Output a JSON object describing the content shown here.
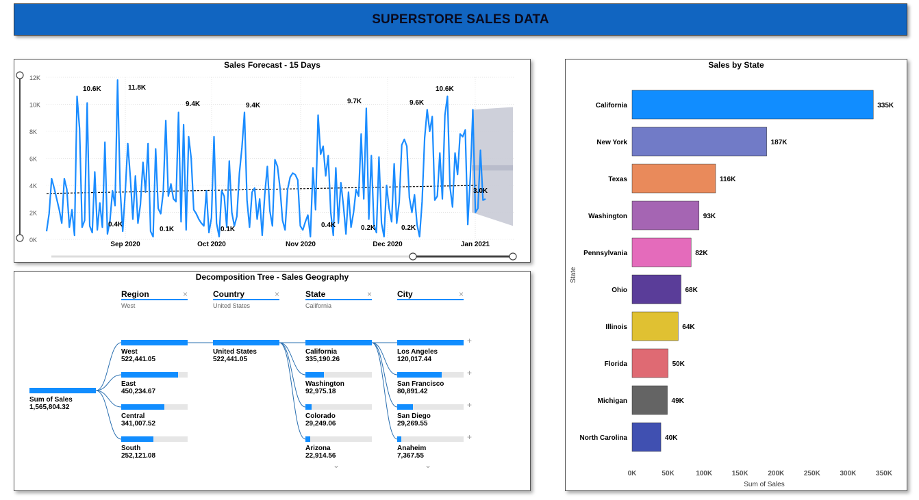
{
  "header": {
    "title": "SUPERSTORE SALES DATA"
  },
  "forecast": {
    "title": "Sales Forecast - 15 Days",
    "chart_data": {
      "type": "line",
      "title": "Sales Forecast - 15 Days",
      "ylim": [
        0,
        12000
      ],
      "y_ticks": [
        "0K",
        "2K",
        "4K",
        "6K",
        "8K",
        "10K",
        "12K"
      ],
      "x_ticks": [
        "Sep 2020",
        "Oct 2020",
        "Nov 2020",
        "Dec 2020",
        "Jan 2021"
      ],
      "x_range": [
        "2020-08-13",
        "2021-01-15"
      ],
      "series": [
        {
          "values": [
            600,
            1900,
            4500,
            3800,
            3000,
            2200,
            1200,
            4500,
            3700,
            900,
            2200,
            300,
            10600,
            8200,
            900,
            1400,
            10100,
            1000,
            500,
            5000,
            700,
            2700,
            900,
            7200,
            400,
            1400,
            3600,
            2500,
            11800,
            3700,
            600,
            3500,
            7100,
            4600,
            1500,
            4700,
            1200,
            2600,
            5700,
            3500,
            7100,
            600,
            200,
            6700,
            2300,
            1900,
            3500,
            8800,
            3200,
            4100,
            3000,
            2800,
            9400,
            1300,
            8500,
            700,
            7600,
            6000,
            2200,
            1900,
            1500,
            1200,
            1000,
            3600,
            500,
            1600,
            7600,
            1200,
            200,
            3600,
            3200,
            900,
            5800,
            2000,
            1000,
            1700,
            4900,
            6800,
            9400,
            2900,
            900,
            3500,
            3800,
            1500,
            3000,
            300,
            3300,
            5400,
            2100,
            1000,
            5900,
            5400,
            3800,
            1400,
            700,
            3700,
            4600,
            4900,
            4800,
            4400,
            1000,
            700,
            1300,
            1800,
            200,
            5300,
            2200,
            9200,
            6300,
            6900,
            4700,
            6200,
            2000,
            300,
            5300,
            1200,
            4200,
            2500,
            400,
            3500,
            900,
            2000,
            3700,
            3200,
            7800,
            3000,
            9700,
            1500,
            6200,
            1100,
            500,
            6100,
            1200,
            200,
            4000,
            2300,
            1300,
            5600,
            1200,
            2800,
            7000,
            7400,
            6900,
            3100,
            2000,
            3300,
            1100,
            200,
            2800,
            7500,
            9600,
            8000,
            9100,
            2900,
            3200,
            6400,
            3000,
            9200,
            10600,
            3900,
            2400,
            6400,
            4800,
            7800,
            7600,
            8100,
            1100,
            4700,
            9600,
            2000,
            2300,
            6600,
            2900,
            3000
          ],
          "color": "#1a8cff"
        }
      ],
      "trend": [
        3400,
        4000
      ],
      "forecast_band": {
        "upper": [
          9600,
          9600
        ],
        "lower": [
          2000,
          1000
        ],
        "value": 5300
      },
      "data_labels": [
        "10.6K",
        "11.8K",
        "9.4K",
        "9.4K",
        "9.7K",
        "9.6K",
        "10.6K",
        "0.4K",
        "0.1K",
        "0.1K",
        "0.4K",
        "0.2K",
        "0.2K",
        "3.0K"
      ]
    }
  },
  "decomp": {
    "title": "Decomposition Tree - Sales Geography",
    "root": {
      "label": "Sum of Sales",
      "value": "1,565,804.32"
    },
    "levels": [
      {
        "name": "Region",
        "selected": "West"
      },
      {
        "name": "Country",
        "selected": "United States"
      },
      {
        "name": "State",
        "selected": "California"
      },
      {
        "name": "City",
        "selected": ""
      }
    ],
    "region": [
      {
        "label": "West",
        "value": "522,441.05",
        "fill": 1.0
      },
      {
        "label": "East",
        "value": "450,234.67",
        "fill": 0.86
      },
      {
        "label": "Central",
        "value": "341,007.52",
        "fill": 0.65
      },
      {
        "label": "South",
        "value": "252,121.08",
        "fill": 0.48
      }
    ],
    "country": [
      {
        "label": "United States",
        "value": "522,441.05",
        "fill": 1.0
      }
    ],
    "state": [
      {
        "label": "California",
        "value": "335,190.26",
        "fill": 1.0
      },
      {
        "label": "Washington",
        "value": "92,975.18",
        "fill": 0.28
      },
      {
        "label": "Colorado",
        "value": "29,249.06",
        "fill": 0.09
      },
      {
        "label": "Arizona",
        "value": "22,914.56",
        "fill": 0.07
      }
    ],
    "city": [
      {
        "label": "Los Angeles",
        "value": "120,017.44",
        "fill": 1.0
      },
      {
        "label": "San Francisco",
        "value": "80,891.42",
        "fill": 0.67
      },
      {
        "label": "San Diego",
        "value": "29,269.55",
        "fill": 0.24
      },
      {
        "label": "Anaheim",
        "value": "7,367.55",
        "fill": 0.06
      }
    ]
  },
  "states": {
    "title": "Sales by State",
    "chart_data": {
      "type": "bar",
      "orientation": "horizontal",
      "title": "Sales by State",
      "ylabel": "State",
      "xlabel": "Sum of Sales",
      "xlim": [
        0,
        350000
      ],
      "x_ticks": [
        "0K",
        "50K",
        "100K",
        "150K",
        "200K",
        "250K",
        "300K",
        "350K"
      ],
      "categories": [
        "California",
        "New York",
        "Texas",
        "Washington",
        "Pennsylvania",
        "Ohio",
        "Illinois",
        "Florida",
        "Michigan",
        "North Carolina"
      ],
      "values": [
        335000,
        187000,
        116000,
        93000,
        82000,
        68000,
        64000,
        50000,
        49000,
        40000
      ],
      "labels": [
        "335K",
        "187K",
        "116K",
        "93K",
        "82K",
        "68K",
        "64K",
        "50K",
        "49K",
        "40K"
      ],
      "colors": [
        "#118dff",
        "#717bc7",
        "#e98a5b",
        "#a565b3",
        "#e46bbb",
        "#5a3d99",
        "#e0c132",
        "#df6a73",
        "#646464",
        "#4050b1"
      ]
    }
  }
}
